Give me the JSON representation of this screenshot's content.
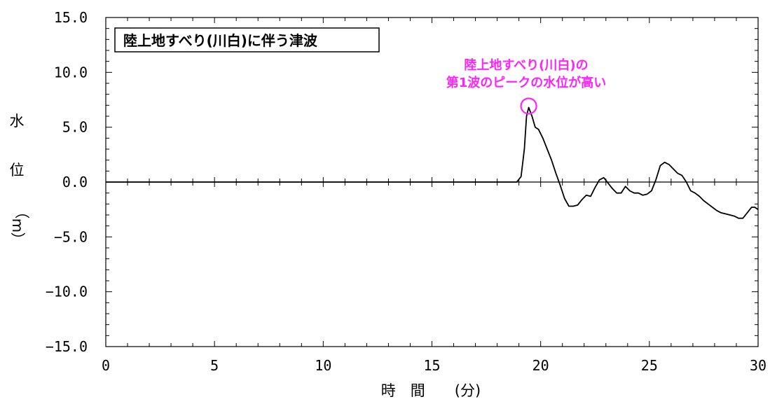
{
  "chart_data": {
    "type": "line",
    "title": "陸上地すべり(川白)に伴う津波",
    "xlabel": "時　間　　(分)",
    "ylabel_chars": [
      "水",
      "位",
      "（",
      "m",
      "）"
    ],
    "xlim": [
      0,
      30
    ],
    "ylim": [
      -15,
      15
    ],
    "x_ticks": [
      0,
      5,
      10,
      15,
      20,
      25,
      30
    ],
    "x_tick_labels": [
      "0",
      "5",
      "10",
      "15",
      "20",
      "25",
      "30"
    ],
    "y_ticks": [
      15,
      10,
      5,
      0,
      -5,
      -10,
      -15
    ],
    "y_tick_labels": [
      "15.0",
      "10.0",
      "5.0",
      "0.0",
      "−5.0",
      "−10.0",
      "−15.0"
    ],
    "grid": false,
    "series": [
      {
        "color": "#000000",
        "x": [
          0,
          18.9,
          19.1,
          19.25,
          19.35,
          19.45,
          19.6,
          19.75,
          19.9,
          20.1,
          20.3,
          20.5,
          20.7,
          20.9,
          21.1,
          21.3,
          21.5,
          21.7,
          21.9,
          22.1,
          22.3,
          22.5,
          22.7,
          22.9,
          23.1,
          23.3,
          23.5,
          23.7,
          23.9,
          24.1,
          24.3,
          24.5,
          24.7,
          24.9,
          25.1,
          25.3,
          25.5,
          25.7,
          25.9,
          26.1,
          26.3,
          26.5,
          26.7,
          26.9,
          27.1,
          27.3,
          27.5,
          27.7,
          27.9,
          28.1,
          28.3,
          28.5,
          28.7,
          28.9,
          29.1,
          29.3,
          29.5,
          29.7,
          29.85,
          30
        ],
        "y": [
          0,
          0,
          0.5,
          3.0,
          6.0,
          6.8,
          6.0,
          5.0,
          4.8,
          4.0,
          3.0,
          2.0,
          0.8,
          -0.3,
          -1.5,
          -2.2,
          -2.2,
          -2.1,
          -1.6,
          -1.2,
          -1.3,
          -0.5,
          0.2,
          0.4,
          -0.1,
          -0.6,
          -1.0,
          -1.0,
          -0.4,
          -0.8,
          -1.0,
          -1.0,
          -1.2,
          -1.1,
          -0.8,
          0.2,
          1.5,
          1.8,
          1.6,
          1.2,
          0.8,
          0.6,
          0.0,
          -0.8,
          -1.0,
          -1.3,
          -1.7,
          -2.0,
          -2.3,
          -2.6,
          -2.8,
          -2.9,
          -3.0,
          -3.1,
          -3.3,
          -3.3,
          -2.8,
          -2.3,
          -2.3,
          -2.5
        ]
      }
    ],
    "annotation": {
      "lines": [
        "陸上地すべり(川白)の",
        "第1波のピークの水位が高い"
      ],
      "color": "#ff22ff",
      "target_x": 19.45,
      "target_y": 6.8
    }
  }
}
